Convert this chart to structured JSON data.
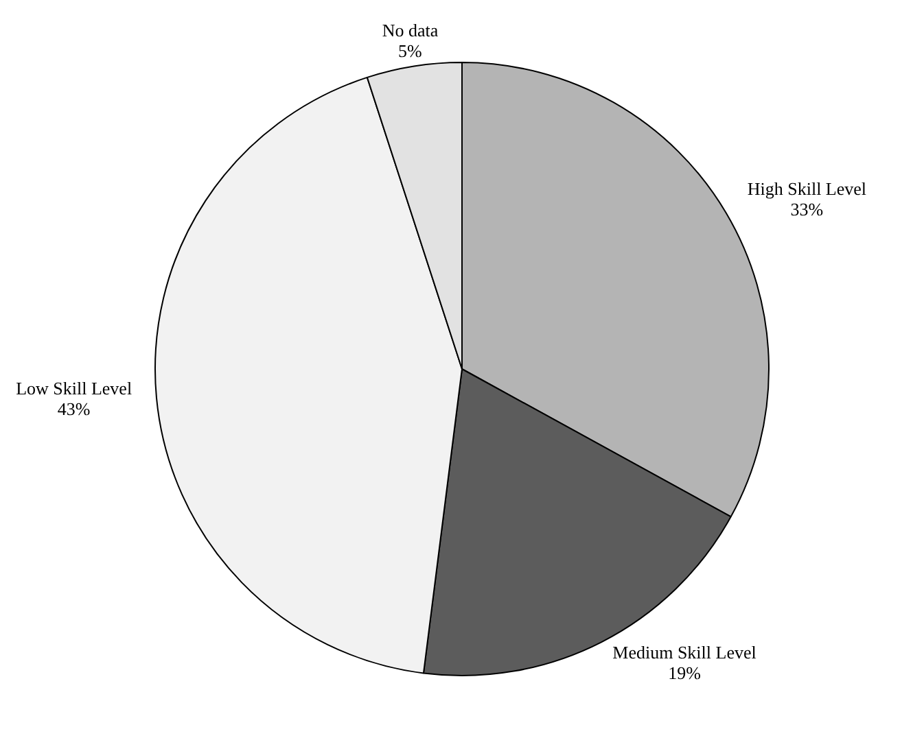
{
  "chart_data": {
    "type": "pie",
    "categories": [
      "High Skill Level",
      "Medium Skill Level",
      "Low Skill Level",
      "No data"
    ],
    "values": [
      33,
      19,
      43,
      5
    ],
    "value_labels": [
      "33%",
      "19%",
      "43%",
      "5%"
    ],
    "colors": [
      "#b4b4b4",
      "#5c5c5c",
      "#f2f2f2",
      "#e2e2e2"
    ],
    "legend": false
  }
}
